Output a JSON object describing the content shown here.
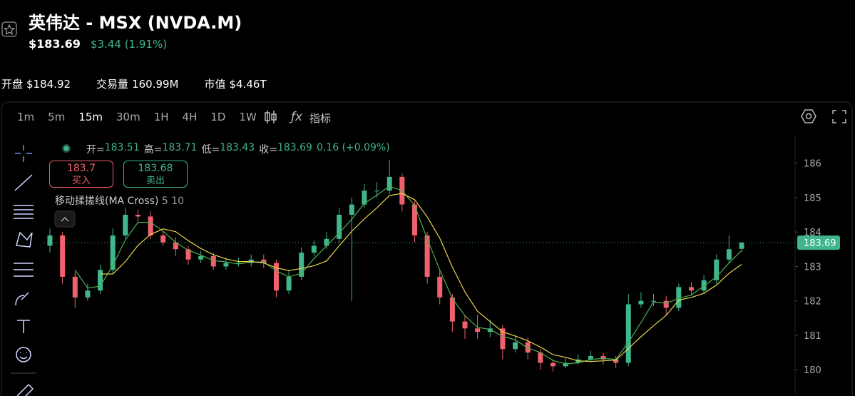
{
  "header": {
    "title": "英伟达 - MSX  (NVDA.M)",
    "price": "$183.69",
    "change": "$3.44 (1.91%)"
  },
  "stats": [
    {
      "label": "开盘",
      "value": "$184.92"
    },
    {
      "label": "交易量",
      "value": "160.99M"
    },
    {
      "label": "市值",
      "value": "$4.46T"
    }
  ],
  "toolbar": {
    "intervals": [
      "1m",
      "5m",
      "15m",
      "30m",
      "1H",
      "4H",
      "1D",
      "1W"
    ],
    "indicators": "指标"
  },
  "info_bar": {
    "open_label": "开=",
    "open": "183.51",
    "high_label": "高=",
    "high": "183.71",
    "low_label": "低=",
    "low": "183.43",
    "close_label": "收=",
    "close": "183.69",
    "change": "0.16 (+0.09%)"
  },
  "quote_buttons": [
    {
      "price": "183.7",
      "action": "买入"
    },
    {
      "price": "183.68",
      "action": "卖出"
    }
  ],
  "indicator_legend": {
    "name": "移动揉搓线(MA Cross)"
  },
  "chart_data": {
    "type": "candlestick",
    "open": [
      183.6,
      183.9,
      182.7,
      182.1,
      182.3,
      182.9,
      183.9,
      184.5,
      184.45,
      183.9,
      183.7,
      183.5,
      183.2,
      183.3,
      183.0,
      183.1,
      183.1,
      183.2,
      183.1,
      182.3,
      182.7,
      183.4,
      183.6,
      183.8,
      184.5,
      184.8,
      185.2,
      185.2,
      185.6,
      184.8,
      183.9,
      182.7,
      182.1,
      181.4,
      181.2,
      181.1,
      181.2,
      180.6,
      180.8,
      180.5,
      180.2,
      180.1,
      180.2,
      180.3,
      180.4,
      180.3,
      180.2,
      181.9,
      182.0,
      182.0,
      181.8,
      182.4,
      182.3,
      182.6,
      183.2,
      183.51
    ],
    "high": [
      184.1,
      184.0,
      182.85,
      182.5,
      183.05,
      184.1,
      184.7,
      184.65,
      184.6,
      184.05,
      183.85,
      183.6,
      183.45,
      183.4,
      183.25,
      183.25,
      183.35,
      183.35,
      183.2,
      182.9,
      183.55,
      183.75,
      184.0,
      184.7,
      185.0,
      185.4,
      185.45,
      186.1,
      185.7,
      184.9,
      184.0,
      182.9,
      182.2,
      181.6,
      181.6,
      181.45,
      181.3,
      181.0,
      180.95,
      180.6,
      180.3,
      180.35,
      180.45,
      180.55,
      180.5,
      180.4,
      182.2,
      182.25,
      182.2,
      182.15,
      182.5,
      182.55,
      182.75,
      183.35,
      183.9,
      183.71
    ],
    "low": [
      183.4,
      182.5,
      181.8,
      182.0,
      182.2,
      182.8,
      183.8,
      184.3,
      183.8,
      183.6,
      183.3,
      183.05,
      183.1,
      182.9,
      182.9,
      183.0,
      183.0,
      182.95,
      182.1,
      182.2,
      182.6,
      183.3,
      183.5,
      183.7,
      182.0,
      184.7,
      185.0,
      185.1,
      184.6,
      183.7,
      182.5,
      181.9,
      181.1,
      180.9,
      180.9,
      180.95,
      180.3,
      180.5,
      180.3,
      180.0,
      179.95,
      180.05,
      180.15,
      180.25,
      180.15,
      180.05,
      180.1,
      181.8,
      181.85,
      181.6,
      181.7,
      182.15,
      182.2,
      182.5,
      183.1,
      183.43
    ],
    "close": [
      183.9,
      182.7,
      182.1,
      182.3,
      182.9,
      183.9,
      184.5,
      184.45,
      183.9,
      183.7,
      183.5,
      183.2,
      183.3,
      183.0,
      183.1,
      183.1,
      183.2,
      183.1,
      182.3,
      182.7,
      183.4,
      183.6,
      183.8,
      184.5,
      184.8,
      185.2,
      185.2,
      185.6,
      184.8,
      183.9,
      182.7,
      182.1,
      181.4,
      181.2,
      181.1,
      181.2,
      180.6,
      180.8,
      180.5,
      180.2,
      180.1,
      180.2,
      180.3,
      180.4,
      180.3,
      180.2,
      181.9,
      182.0,
      182.0,
      181.8,
      182.4,
      182.3,
      182.6,
      183.2,
      183.5,
      183.69
    ],
    "up_color": "#3fb68b",
    "down_color": "#f0616d",
    "series": [
      {
        "name": "5",
        "color": "#4caf50",
        "values": [
          null,
          null,
          182.9,
          182.37,
          182.43,
          183.03,
          183.77,
          184.28,
          184.28,
          184.02,
          183.7,
          183.47,
          183.33,
          183.17,
          183.13,
          183.07,
          183.13,
          183.13,
          182.87,
          182.7,
          182.8,
          183.23,
          183.6,
          183.97,
          184.37,
          184.83,
          185.07,
          185.33,
          185.2,
          184.77,
          183.8,
          182.9,
          182.07,
          181.57,
          181.23,
          181.17,
          180.97,
          180.87,
          180.63,
          180.5,
          180.27,
          180.17,
          180.2,
          180.3,
          180.33,
          180.3,
          180.8,
          181.37,
          181.97,
          181.93,
          182.07,
          182.17,
          182.43,
          182.7,
          183.1,
          183.46
        ]
      },
      {
        "name": "10",
        "color": "#e8d44d",
        "values": [
          null,
          null,
          null,
          null,
          182.78,
          182.78,
          183.14,
          183.61,
          183.93,
          184.09,
          184.01,
          183.75,
          183.52,
          183.34,
          183.22,
          183.14,
          183.14,
          183.1,
          182.96,
          182.88,
          182.94,
          183.02,
          183.16,
          183.6,
          184.02,
          184.38,
          184.7,
          185.06,
          185.12,
          184.94,
          184.44,
          183.82,
          182.98,
          182.26,
          181.7,
          181.4,
          181.1,
          180.98,
          180.84,
          180.66,
          180.44,
          180.36,
          180.26,
          180.24,
          180.26,
          180.28,
          180.62,
          180.96,
          181.28,
          181.58,
          182.02,
          182.1,
          182.22,
          182.46,
          182.8,
          183.06
        ]
      }
    ],
    "ylim": [
      179.3,
      186.8
    ],
    "yticks": [
      180,
      181,
      182,
      183,
      184,
      185,
      186
    ]
  }
}
